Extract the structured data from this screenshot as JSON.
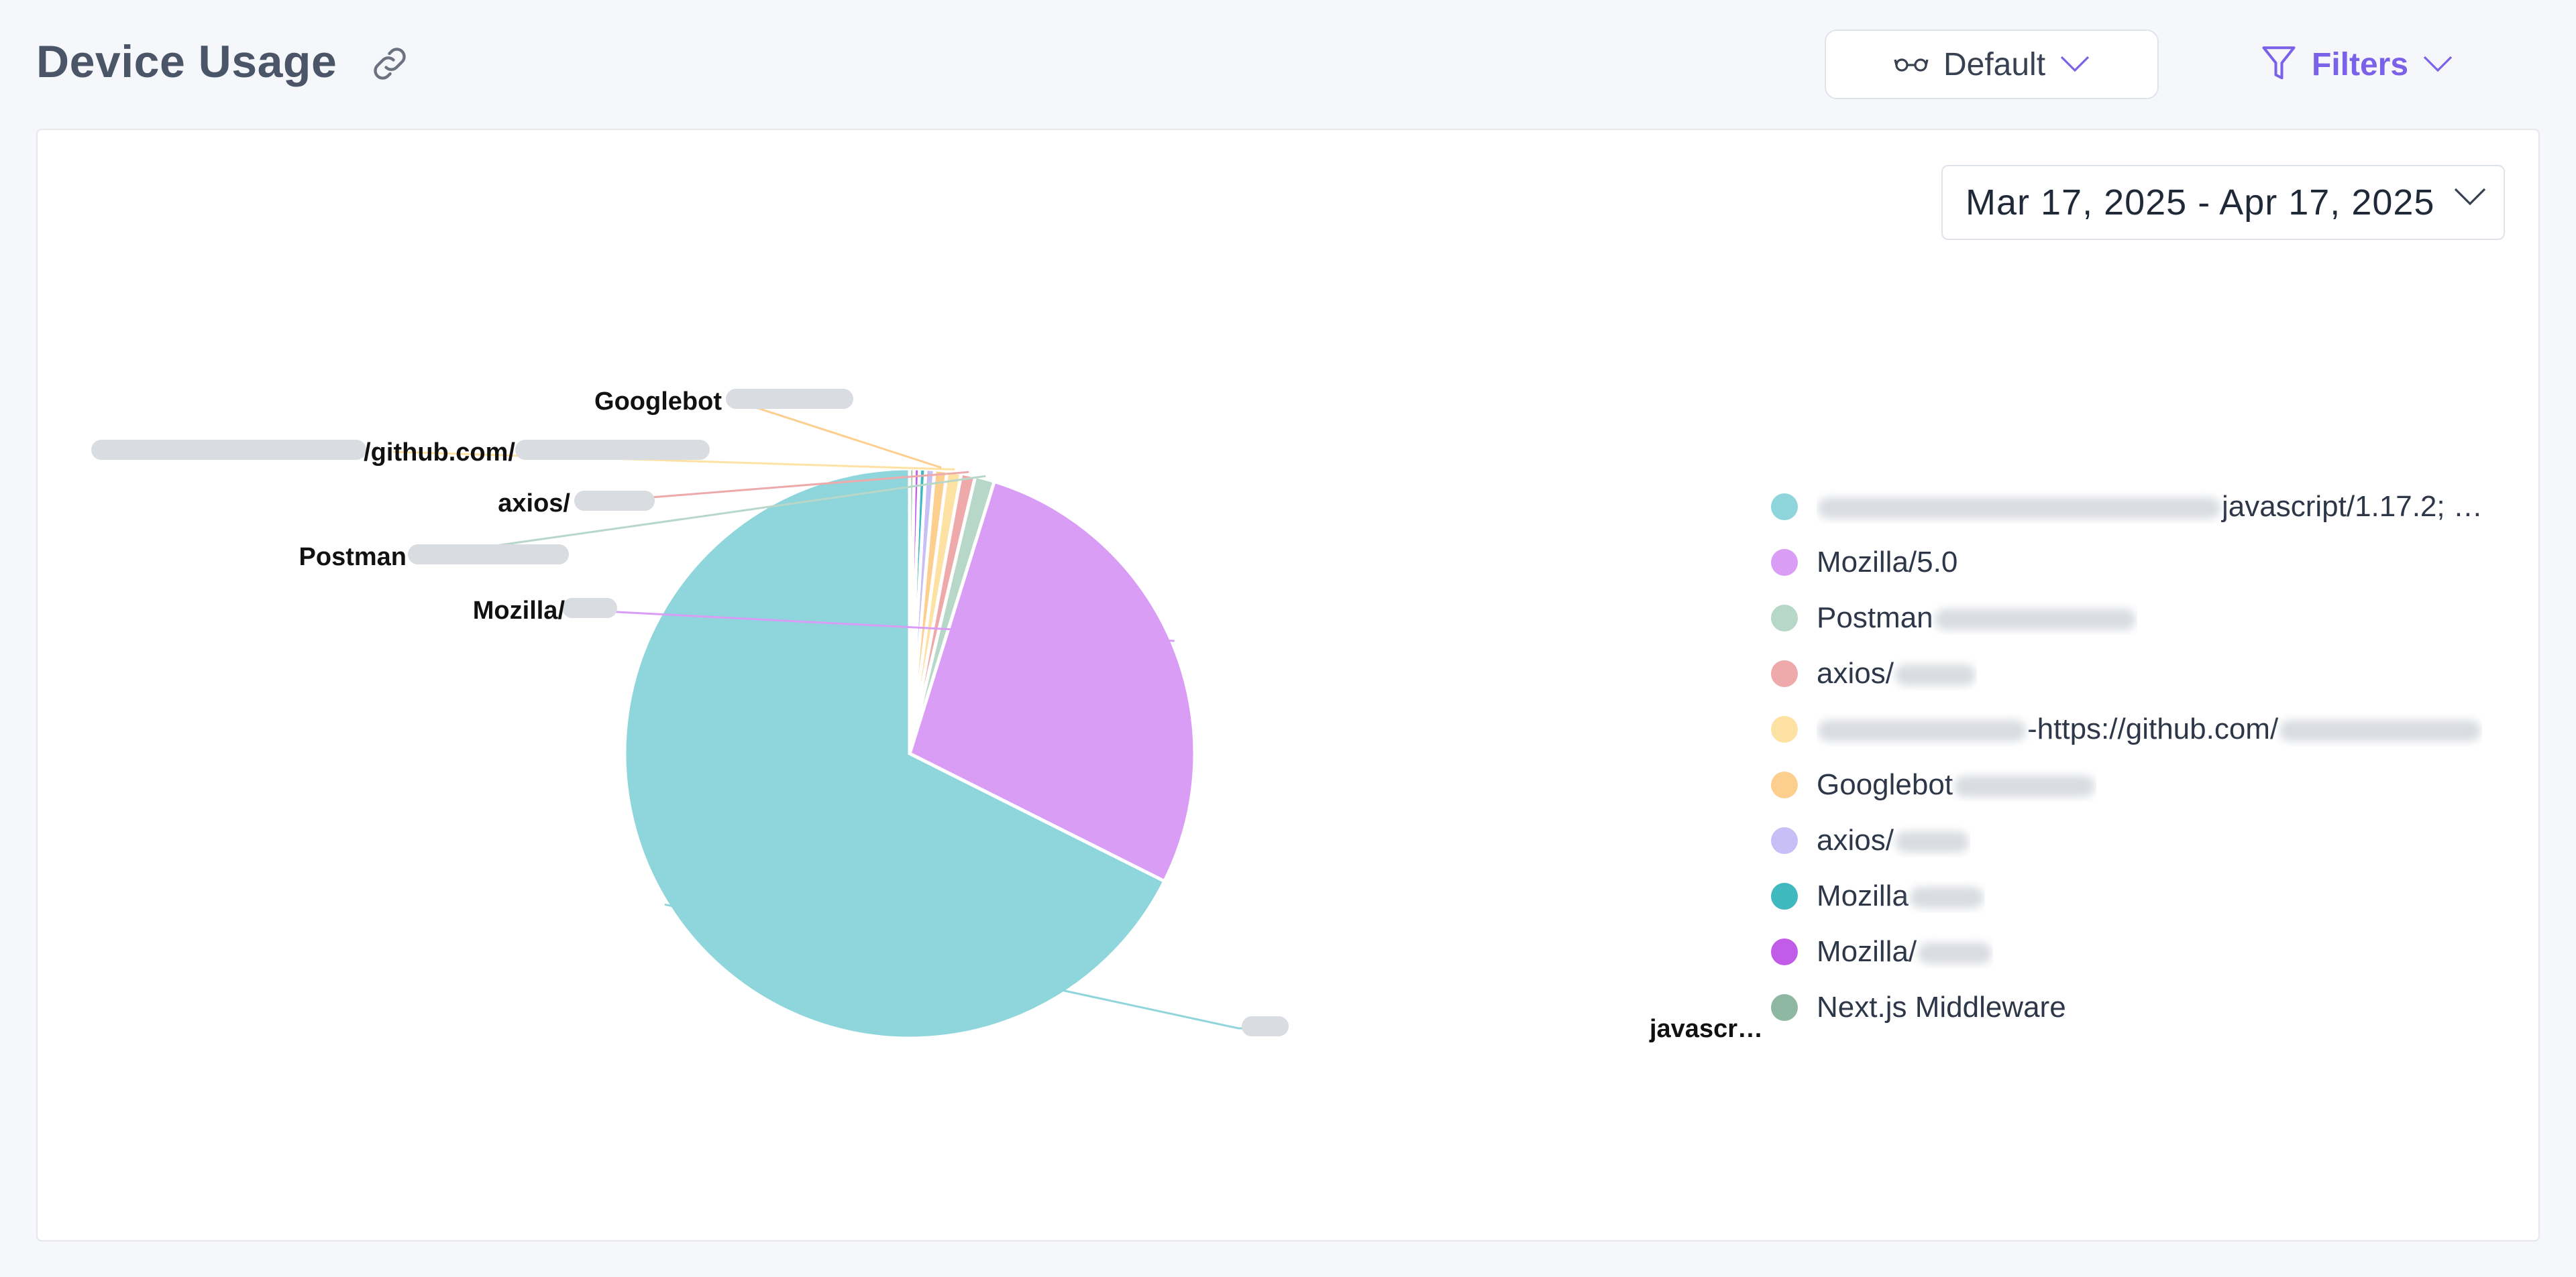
{
  "header": {
    "title": "Device Usage",
    "view_label": "Default",
    "filters_label": "Filters",
    "icons": [
      "link-icon",
      "glasses-icon",
      "chevron-down-icon",
      "filter-icon"
    ]
  },
  "date_range": {
    "label": "Mar 17, 2025 - Apr 17, 2025"
  },
  "chart_data": {
    "type": "pie",
    "legend_placement": "right",
    "slices": [
      {
        "label": "javascript/1.17.2; …",
        "callout": "javascr…",
        "value": 67.6,
        "color": "#8fd5dc"
      },
      {
        "label": "Mozilla/5.0",
        "callout": "Mozilla/",
        "value": 27.6,
        "color": "#d99df5"
      },
      {
        "label": "Postman",
        "callout": "Postman",
        "value": 1.1,
        "color": "#b7d7c8"
      },
      {
        "label": "axios/",
        "callout": "axios/",
        "value": 0.8,
        "color": "#eeaaaa"
      },
      {
        "label": "-https://github.com/",
        "callout": "/github.com/",
        "value": 0.8,
        "color": "#fde2a3"
      },
      {
        "label": "Googlebot",
        "callout": "Googlebot",
        "value": 0.7,
        "color": "#fccf8f"
      },
      {
        "label": "axios/",
        "callout": "",
        "value": 0.5,
        "color": "#c9bff7"
      },
      {
        "label": "Mozilla",
        "callout": "",
        "value": 0.35,
        "color": "#3fb8be"
      },
      {
        "label": "Mozilla/",
        "callout": "",
        "value": 0.3,
        "color": "#c15ce8"
      },
      {
        "label": "Next.js Middleware",
        "callout": "",
        "value": 0.25,
        "color": "#8fb8a2"
      }
    ]
  }
}
